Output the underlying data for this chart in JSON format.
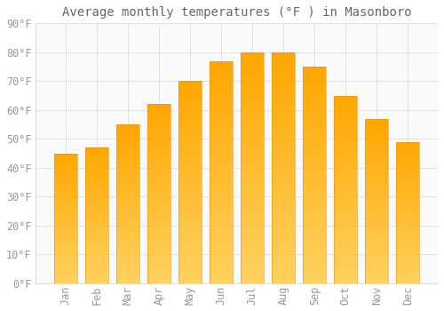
{
  "title": "Average monthly temperatures (°F ) in Masonboro",
  "months": [
    "Jan",
    "Feb",
    "Mar",
    "Apr",
    "May",
    "Jun",
    "Jul",
    "Aug",
    "Sep",
    "Oct",
    "Nov",
    "Dec"
  ],
  "values": [
    45,
    47,
    55,
    62,
    70,
    77,
    80,
    80,
    75,
    65,
    57,
    49
  ],
  "bar_color_top": "#FFA500",
  "bar_color_bottom": "#FFD060",
  "bar_edge_color": "#E89010",
  "background_color": "#FFFFFF",
  "plot_bg_color": "#FAFAFA",
  "grid_color": "#DDDDDD",
  "ylim": [
    0,
    90
  ],
  "yticks": [
    0,
    10,
    20,
    30,
    40,
    50,
    60,
    70,
    80,
    90
  ],
  "title_fontsize": 10,
  "tick_fontsize": 8.5,
  "tick_label_color": "#999999",
  "title_color": "#666666",
  "bar_width": 0.75
}
